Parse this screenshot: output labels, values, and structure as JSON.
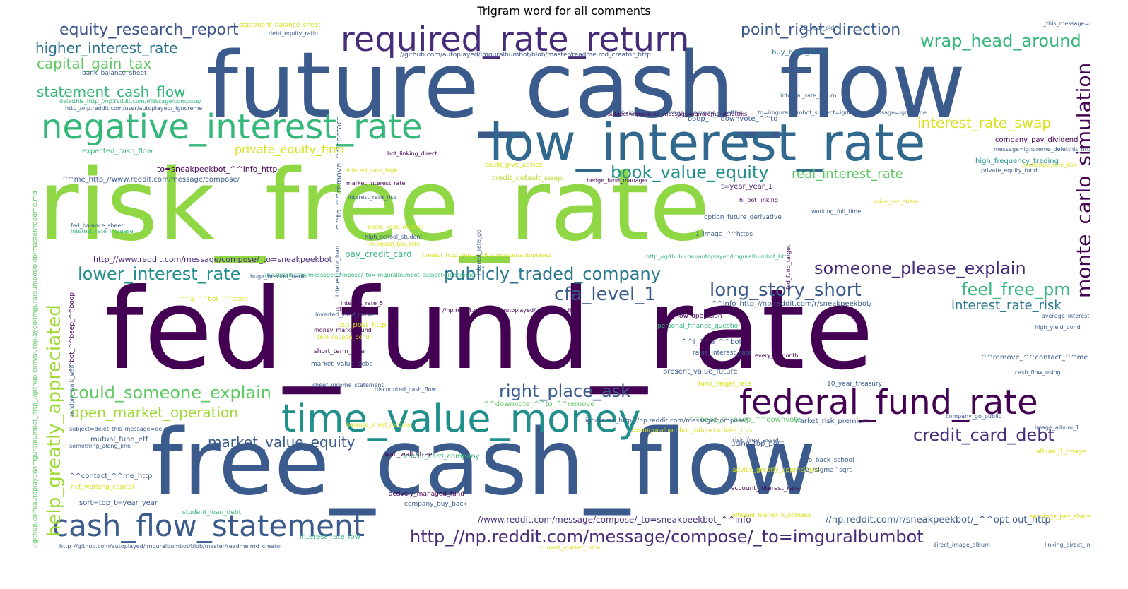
{
  "title": "Trigram word for all comments",
  "palette": {
    "dark_purple": "#440154",
    "blue": "#3b5b8c",
    "teal": "#21908c",
    "green": "#35b779",
    "lime": "#8fd744",
    "yellow": "#d8e219",
    "indigo": "#472c7a"
  },
  "words": [
    {
      "text": "future_cash_flow",
      "color": "#3b5b8c",
      "r": 0
    },
    {
      "text": "risk_free_rate",
      "color": "#8fd744",
      "r": 0
    },
    {
      "text": "fed_fund_rate",
      "color": "#440154",
      "r": 0
    },
    {
      "text": "free_cash_flow",
      "color": "#3b5b8c",
      "r": 0
    },
    {
      "text": "low_interest_rate",
      "color": "#31688e",
      "r": 0
    },
    {
      "text": "negative_interest_rate",
      "color": "#35b779",
      "r": 0
    },
    {
      "text": "required_rate_return",
      "color": "#472c7a",
      "r": 0
    },
    {
      "text": "time_value_money",
      "color": "#21908c",
      "r": 0
    },
    {
      "text": "federal_fund_rate",
      "color": "#440154",
      "r": 0
    },
    {
      "text": "cash_flow_statement",
      "color": "#3b5b8c",
      "r": 0
    },
    {
      "text": "http_//np.reddit.com/message/compose/_to=imguralbumbot",
      "color": "#472c7a",
      "r": 0
    },
    {
      "text": "equity_research_report",
      "color": "#3b528b",
      "r": 0
    },
    {
      "text": "point_right_direction",
      "color": "#3b5b8c",
      "r": 0
    },
    {
      "text": "wrap_head_around",
      "color": "#35b779",
      "r": 0
    },
    {
      "text": "higher_interest_rate",
      "color": "#2c728e",
      "r": 0
    },
    {
      "text": "capital_gain_tax",
      "color": "#5ec962",
      "r": 0
    },
    {
      "text": "statement_cash_flow",
      "color": "#35b779",
      "r": 0
    },
    {
      "text": "interest_rate_swap",
      "color": "#d8e219",
      "r": 0
    },
    {
      "text": "private_equity_firm",
      "color": "#d8e219",
      "r": 0
    },
    {
      "text": "book_value_equity",
      "color": "#21908c",
      "r": 0
    },
    {
      "text": "real_interest_rate",
      "color": "#5ec962",
      "r": 0
    },
    {
      "text": "monte_carlo_simulation",
      "color": "#440154",
      "r": -90
    },
    {
      "text": "lower_interest_rate",
      "color": "#21908c",
      "r": 0
    },
    {
      "text": "publicly_traded_company",
      "color": "#2a788e",
      "r": 0
    },
    {
      "text": "someone_please_explain",
      "color": "#472c7a",
      "r": 0
    },
    {
      "text": "long_story_short",
      "color": "#3b5b8c",
      "r": 0
    },
    {
      "text": "feel_free_pm",
      "color": "#35b779",
      "r": 0
    },
    {
      "text": "cfa_level_1",
      "color": "#3b5b8c",
      "r": 0
    },
    {
      "text": "interest_rate_risk",
      "color": "#2a788e",
      "r": 0
    },
    {
      "text": "help_greatly_appreciated",
      "color": "#a0da39",
      "r": -90
    },
    {
      "text": "could_someone_explain",
      "color": "#5ec962",
      "r": 0
    },
    {
      "text": "open_market_operation",
      "color": "#a0da39",
      "r": 0
    },
    {
      "text": "right_place_ask",
      "color": "#3b5b8c",
      "r": 0
    },
    {
      "text": "credit_card_debt",
      "color": "#472c7a",
      "r": 0
    },
    {
      "text": "market_value_equity",
      "color": "#3b5b8c",
      "r": 0
    },
    {
      "text": "pay_credit_card",
      "color": "#35b779",
      "r": 0
    },
    {
      "text": "buy_back_share",
      "color": "#2a788e",
      "r": 0
    },
    {
      "text": "http_//www.reddit.com/message/compose/_to=sneakpeekbot",
      "color": "#472c7a",
      "r": 0
    },
    {
      "text": "^^me_http_//www.reddit.com/message/compose/",
      "color": "#3b5b8c",
      "r": 0
    },
    {
      "text": "to=sneakpeekbot_^^info_http",
      "color": "#440154",
      "r": 0
    },
    {
      "text": "t=year_year_1",
      "color": "#472c7a",
      "r": 0
    },
    {
      "text": "high_frequency_trading",
      "color": "#21908c",
      "r": 0
    },
    {
      "text": "company_pay_dividend",
      "color": "#440154",
      "r": 0
    },
    {
      "text": "expected_cash_flow",
      "color": "#35b779",
      "r": 0
    },
    {
      "text": "credit_default_swap",
      "color": "#b5de2b",
      "r": 0
    },
    {
      "text": "//np.reddit.com/r/sneakpeekbot/_^^opt-out_http",
      "color": "#3b5b8c",
      "r": 0
    },
    {
      "text": "//www.reddit.com/message/compose/_to=sneakpeekbot_^^info",
      "color": "#472c7a",
      "r": 0
    },
    {
      "text": "//github.com/autoplayed/imguralbumbot/blob/master/readme.md_creator_http",
      "color": "#3b528b",
      "r": 0
    },
    {
      "text": "^^boop_^^downvote_^^to",
      "color": "#3b5b8c",
      "r": 0
    },
    {
      "text": "^^info_http_//np.reddit.com/r/sneakpeekbot/",
      "color": "#3b5b8c",
      "r": 0
    },
    {
      "text": "^^contact_^^me_http",
      "color": "#3b5b8c",
      "r": 0
    },
    {
      "text": "sort=top_t=year_year",
      "color": "#3b5b8c",
      "r": 0
    },
    {
      "text": "^^remove_^^contact_^^me",
      "color": "#3b5b8c",
      "r": 0
    },
    {
      "text": "//github.com/autoplayed/imguralbumbot_http_//github.com/autoplayed/imguralbumbot/blob/master/readme.md",
      "color": "#5ec962",
      "r": -90
    },
    {
      "text": "source_http_//github.com/autoplayed/imguralbumbot_subject=delet",
      "color": "#3b5b8c",
      "r": -90
    },
    {
      "text": "mutual_fund_etf",
      "color": "#3b5b8c",
      "r": 0
    },
    {
      "text": "cash_flow_operation",
      "color": "#440154",
      "r": 0
    },
    {
      "text": "present_value_future",
      "color": "#3b5b8c",
      "r": 0
    },
    {
      "text": "^^downvote_^^to_^^remove",
      "color": "#5ec962",
      "r": 0
    },
    {
      "text": "^^beep_^^boop_^^downvote",
      "color": "#5ec962",
      "r": 0
    },
    {
      "text": "market_risk_premium",
      "color": "#3b5b8c",
      "r": 0
    },
    {
      "text": "using_top_post",
      "color": "#3b5b8c",
      "r": 0
    },
    {
      "text": "credit_card_company",
      "color": "#35b779",
      "r": 0
    },
    {
      "text": "top_post_http",
      "color": "#d8e219",
      "r": 0
    },
    {
      "text": "^^a_^^bot_^^beep",
      "color": "#d8e219",
      "r": 0
    },
    {
      "text": "^^i_^^a_^^bot",
      "color": "#3b5b8c",
      "r": 0
    },
    {
      "text": "interest_rate_low",
      "color": "#35b779",
      "r": 0
    },
    {
      "text": "interest_rate_rise",
      "color": "#3b5b8c",
      "r": 0
    },
    {
      "text": "inverted_yield_curve",
      "color": "#3b5b8c",
      "r": 0
    },
    {
      "text": "money_market_fund",
      "color": "#440154",
      "r": 0
    },
    {
      "text": "short_term_rate",
      "color": "#440154",
      "r": 0
    },
    {
      "text": "market_value_debt",
      "color": "#3b5b8c",
      "r": 0
    },
    {
      "text": "sheet_income_statement",
      "color": "#3b5b8c",
      "r": 0
    },
    {
      "text": "discounted_cash_flow",
      "color": "#3b5b8c",
      "r": 0
    },
    {
      "text": "fed_balance_sheet",
      "color": "#3b5b8c",
      "r": 0
    },
    {
      "text": "interest_rate_increase",
      "color": "#35b779",
      "r": 0
    },
    {
      "text": "bank_balance_sheet",
      "color": "#3b5b8c",
      "r": 0
    },
    {
      "text": "personal_finance_question",
      "color": "#35b779",
      "r": 0
    },
    {
      "text": "raise_interest_rate",
      "color": "#3b5b8c",
      "r": 0
    },
    {
      "text": "option_future_derivative",
      "color": "#3b5b8c",
      "r": 0
    },
    {
      "text": "working_full_time",
      "color": "#3b5b8c",
      "r": 0
    },
    {
      "text": "high_school_student",
      "color": "#3b5b8c",
      "r": 0
    },
    {
      "text": "internal_rate_return",
      "color": "#3b5b8c",
      "r": 0
    },
    {
      "text": "private_equity_fund",
      "color": "#3b5b8c",
      "r": 0
    },
    {
      "text": "average_interest_rate",
      "color": "#3b5b8c",
      "r": 0
    },
    {
      "text": "high_yield_bond",
      "color": "#3b5b8c",
      "r": 0
    },
    {
      "text": "cash_flow_using",
      "color": "#3b5b8c",
      "r": 0
    },
    {
      "text": "company_go_public",
      "color": "#3b5b8c",
      "r": 0
    },
    {
      "text": "student_loan_debt",
      "color": "#35b779",
      "r": 0
    },
    {
      "text": "net_working_capital",
      "color": "#d8e219",
      "r": 0
    },
    {
      "text": "actively_managed_fund",
      "color": "#440154",
      "r": 0
    },
    {
      "text": "company_buy_back",
      "color": "#3b5b8c",
      "r": 0
    },
    {
      "text": "wall_wall_street",
      "color": "#440154",
      "r": 0
    },
    {
      "text": "efficient_market_hypothesis",
      "color": "#d8e219",
      "r": 0
    },
    {
      "text": "account_interest_rate",
      "color": "#440154",
      "r": 0
    },
    {
      "text": "advice_greatly_appreciated",
      "color": "#d8e219",
      "r": 0
    },
    {
      "text": "risk_free_asset",
      "color": "#3b5b8c",
      "r": 0
    },
    {
      "text": "fund_target_rate",
      "color": "#d8e219",
      "r": 0
    },
    {
      "text": "10_year_treasury",
      "color": "#3b5b8c",
      "r": 0
    },
    {
      "text": "earnings_per_share",
      "color": "#d8e219",
      "r": 0
    },
    {
      "text": "linking_direct_image",
      "color": "#3b5b8c",
      "r": 0
    },
    {
      "text": "direct_image_album",
      "color": "#3b5b8c",
      "r": 0
    },
    {
      "text": "current_market_price",
      "color": "#d8e219",
      "r": 0
    },
    {
      "text": "stock_price_go",
      "color": "#440154",
      "r": 0
    },
    {
      "text": "interest_rate_5",
      "color": "#440154",
      "r": 0
    },
    {
      "text": "zero_coupon_bond",
      "color": "#d8e219",
      "r": 0
    },
    {
      "text": "bodie_kane_marcus",
      "color": "#d8e219",
      "r": 0
    },
    {
      "text": "marginal_tax_rate",
      "color": "#d8e219",
      "r": 0
    },
    {
      "text": "hedge_fund_manager",
      "color": "#440154",
      "r": 0
    },
    {
      "text": "could_give_advice",
      "color": "#d8e219",
      "r": 0
    },
    {
      "text": "exchange_rate_risk",
      "color": "#d8e219",
      "r": 0
    },
    {
      "text": "price_per_share",
      "color": "#d8e219",
      "r": 0
    },
    {
      "text": "subject=ignoreme_message=ignoreme_deletthis",
      "color": "#440154",
      "r": 0
    },
    {
      "text": "subject=delet_this_message=delet",
      "color": "#3b5b8c",
      "r": 0
    },
    {
      "text": "deletthis_http_//np.reddit.com/message/compose/",
      "color": "#35b779",
      "r": 0
    },
    {
      "text": "http_//np.reddit.com/user/autoplayed/_ignoreme",
      "color": "#3b5b8c",
      "r": 0
    },
    {
      "text": "//np.reddit.com/user/autoplayed/_ignoreme_http",
      "color": "#440154",
      "r": 0
    },
    {
      "text": "statement_balance_sheet",
      "color": "#d8e219",
      "r": 0
    },
    {
      "text": "debt_equity_ratio",
      "color": "#3b5b8c",
      "r": 0
    },
    {
      "text": "bot_linking_direct",
      "color": "#440154",
      "r": 0
    },
    {
      "text": "//np.reddit.com/message/compose/_to=imguralbumbot_subject=ignoreme",
      "color": "#35b779",
      "r": 0
    },
    {
      "text": "huge_bracket_bank",
      "color": "#3b5b8c",
      "r": 0
    },
    {
      "text": "balance_sheet_income",
      "color": "#d8e219",
      "r": 0
    },
    {
      "text": "ignoreme_http_//np.reddit.com/message/compose/",
      "color": "#3b5b8c",
      "r": 0
    },
    {
      "text": "to=imguralbumbot_subject=delet_this",
      "color": "#d8e219",
      "r": 0
    },
    {
      "text": "go_back_school",
      "color": "#3b5b8c",
      "r": 0
    },
    {
      "text": "2_/2_/sigma^sqrt",
      "color": "#3b5b8c",
      "r": 0
    },
    {
      "text": "album_1_image",
      "color": "#d8e219",
      "r": 0
    },
    {
      "text": "image_album_1",
      "color": "#3b5b8c",
      "r": 0
    },
    {
      "text": "every_2_month",
      "color": "#440154",
      "r": 0
    },
    {
      "text": "something_along_line",
      "color": "#3b5b8c",
      "r": 0
    },
    {
      "text": "creator_http_//np.reddit.com/user/autoplayed",
      "color": "#d8e219",
      "r": 0
    },
    {
      "text": "http_//github.com/autoplayed/imguralbumbot/blob/master/readme.md_creator",
      "color": "#3b5b8c",
      "r": 0
    },
    {
      "text": "22_year_old",
      "color": "#3b5b8c",
      "r": 0
    },
    {
      "text": "_this_message=delet_this",
      "color": "#3b5b8c",
      "r": 0
    },
    {
      "text": "message=ignoreme_deletthis_http",
      "color": "#3b5b8c",
      "r": 0
    },
    {
      "text": "http_//github.com/autoplayed/imguralbumbot_http",
      "color": "#35b779",
      "r": 0
    },
    {
      "text": "hi_bot_linking",
      "color": "#440154",
      "r": 0
    },
    {
      "text": "1_image_^^https",
      "color": "#3b5b8c",
      "r": 0
    },
    {
      "text": "subject=ignoreme_message=ignoreme_deletthis",
      "color": "#3b5b8c",
      "r": 0
    },
    {
      "text": "to=imguralbumbot_subject=ignoreme_message=ignoreme",
      "color": "#3b5b8c",
      "r": 0
    },
    {
      "text": "interest_rate_high",
      "color": "#d8e219",
      "r": 0
    },
    {
      "text": "market_interest_rate",
      "color": "#440154",
      "r": 0
    },
    {
      "text": "^^to_^^remove_^^contact",
      "color": "#3b5b8c",
      "r": -90
    },
    {
      "text": "^^bot_^^beep_^^boop",
      "color": "#440154",
      "r": -90
    },
    {
      "text": "interest_rate_loan",
      "color": "#3b5b8c",
      "r": -90
    },
    {
      "text": "random_walk_wall",
      "color": "#3b5b8c",
      "r": -90
    },
    {
      "text": "interest_rate_go",
      "color": "#3b5b8c",
      "r": -90
    },
    {
      "text": "fed_fund_target",
      "color": "#440154",
      "r": -90
    }
  ]
}
